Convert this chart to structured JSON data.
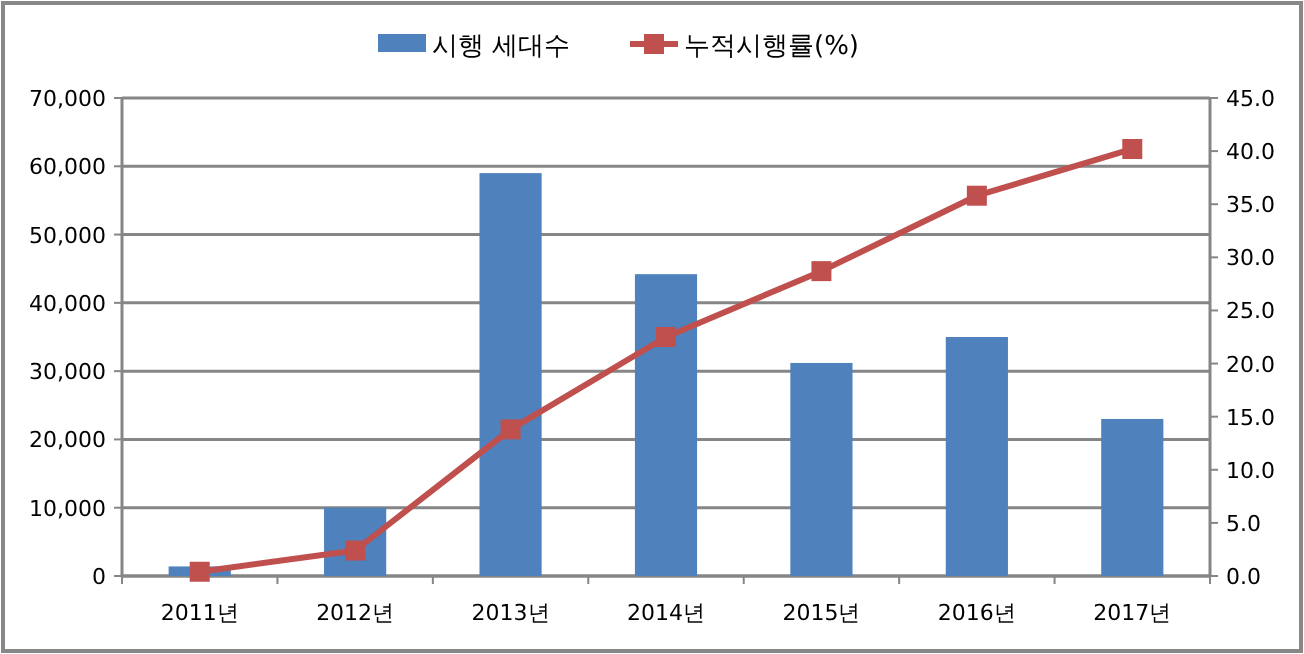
{
  "chart_data": {
    "type": "bar",
    "categories": [
      "2011년",
      "2012년",
      "2013년",
      "2014년",
      "2015년",
      "2016년",
      "2017년"
    ],
    "series": [
      {
        "name": "시행 세대수",
        "color": "#4f81bd",
        "values": [
          1400,
          10000,
          59000,
          44200,
          31200,
          35000,
          23000
        ]
      },
      {
        "name": "누적시행률(%)",
        "type": "line",
        "axis": "y2",
        "color": "#c0504d",
        "marker": "square",
        "values": [
          0.4,
          2.4,
          13.8,
          22.5,
          28.7,
          35.8,
          40.2
        ]
      }
    ],
    "ylim": [
      0,
      70000
    ],
    "yticks": [
      0,
      {
        "value": 10000,
        "label": "10,000"
      },
      {
        "value": 20000,
        "label": "20,000"
      },
      {
        "value": 30000,
        "label": "30,000"
      },
      {
        "value": 40000,
        "label": "40,000"
      },
      {
        "value": 50000,
        "label": "50,000"
      },
      {
        "value": 60000,
        "label": "60,000"
      },
      {
        "value": 70000,
        "label": "70,000"
      }
    ],
    "y2lim": [
      0,
      45
    ],
    "y2ticks": [
      {
        "value": 0,
        "label": "0.0"
      },
      {
        "value": 5,
        "label": "5.0"
      },
      {
        "value": 10,
        "label": "10.0"
      },
      {
        "value": 15,
        "label": "15.0"
      },
      {
        "value": 20,
        "label": "20.0"
      },
      {
        "value": 25,
        "label": "25.0"
      },
      {
        "value": 30,
        "label": "30.0"
      },
      {
        "value": 35,
        "label": "35.0"
      },
      {
        "value": 40,
        "label": "40.0"
      },
      {
        "value": 45,
        "label": "45.0"
      }
    ],
    "grid": "y",
    "legend": "top"
  }
}
